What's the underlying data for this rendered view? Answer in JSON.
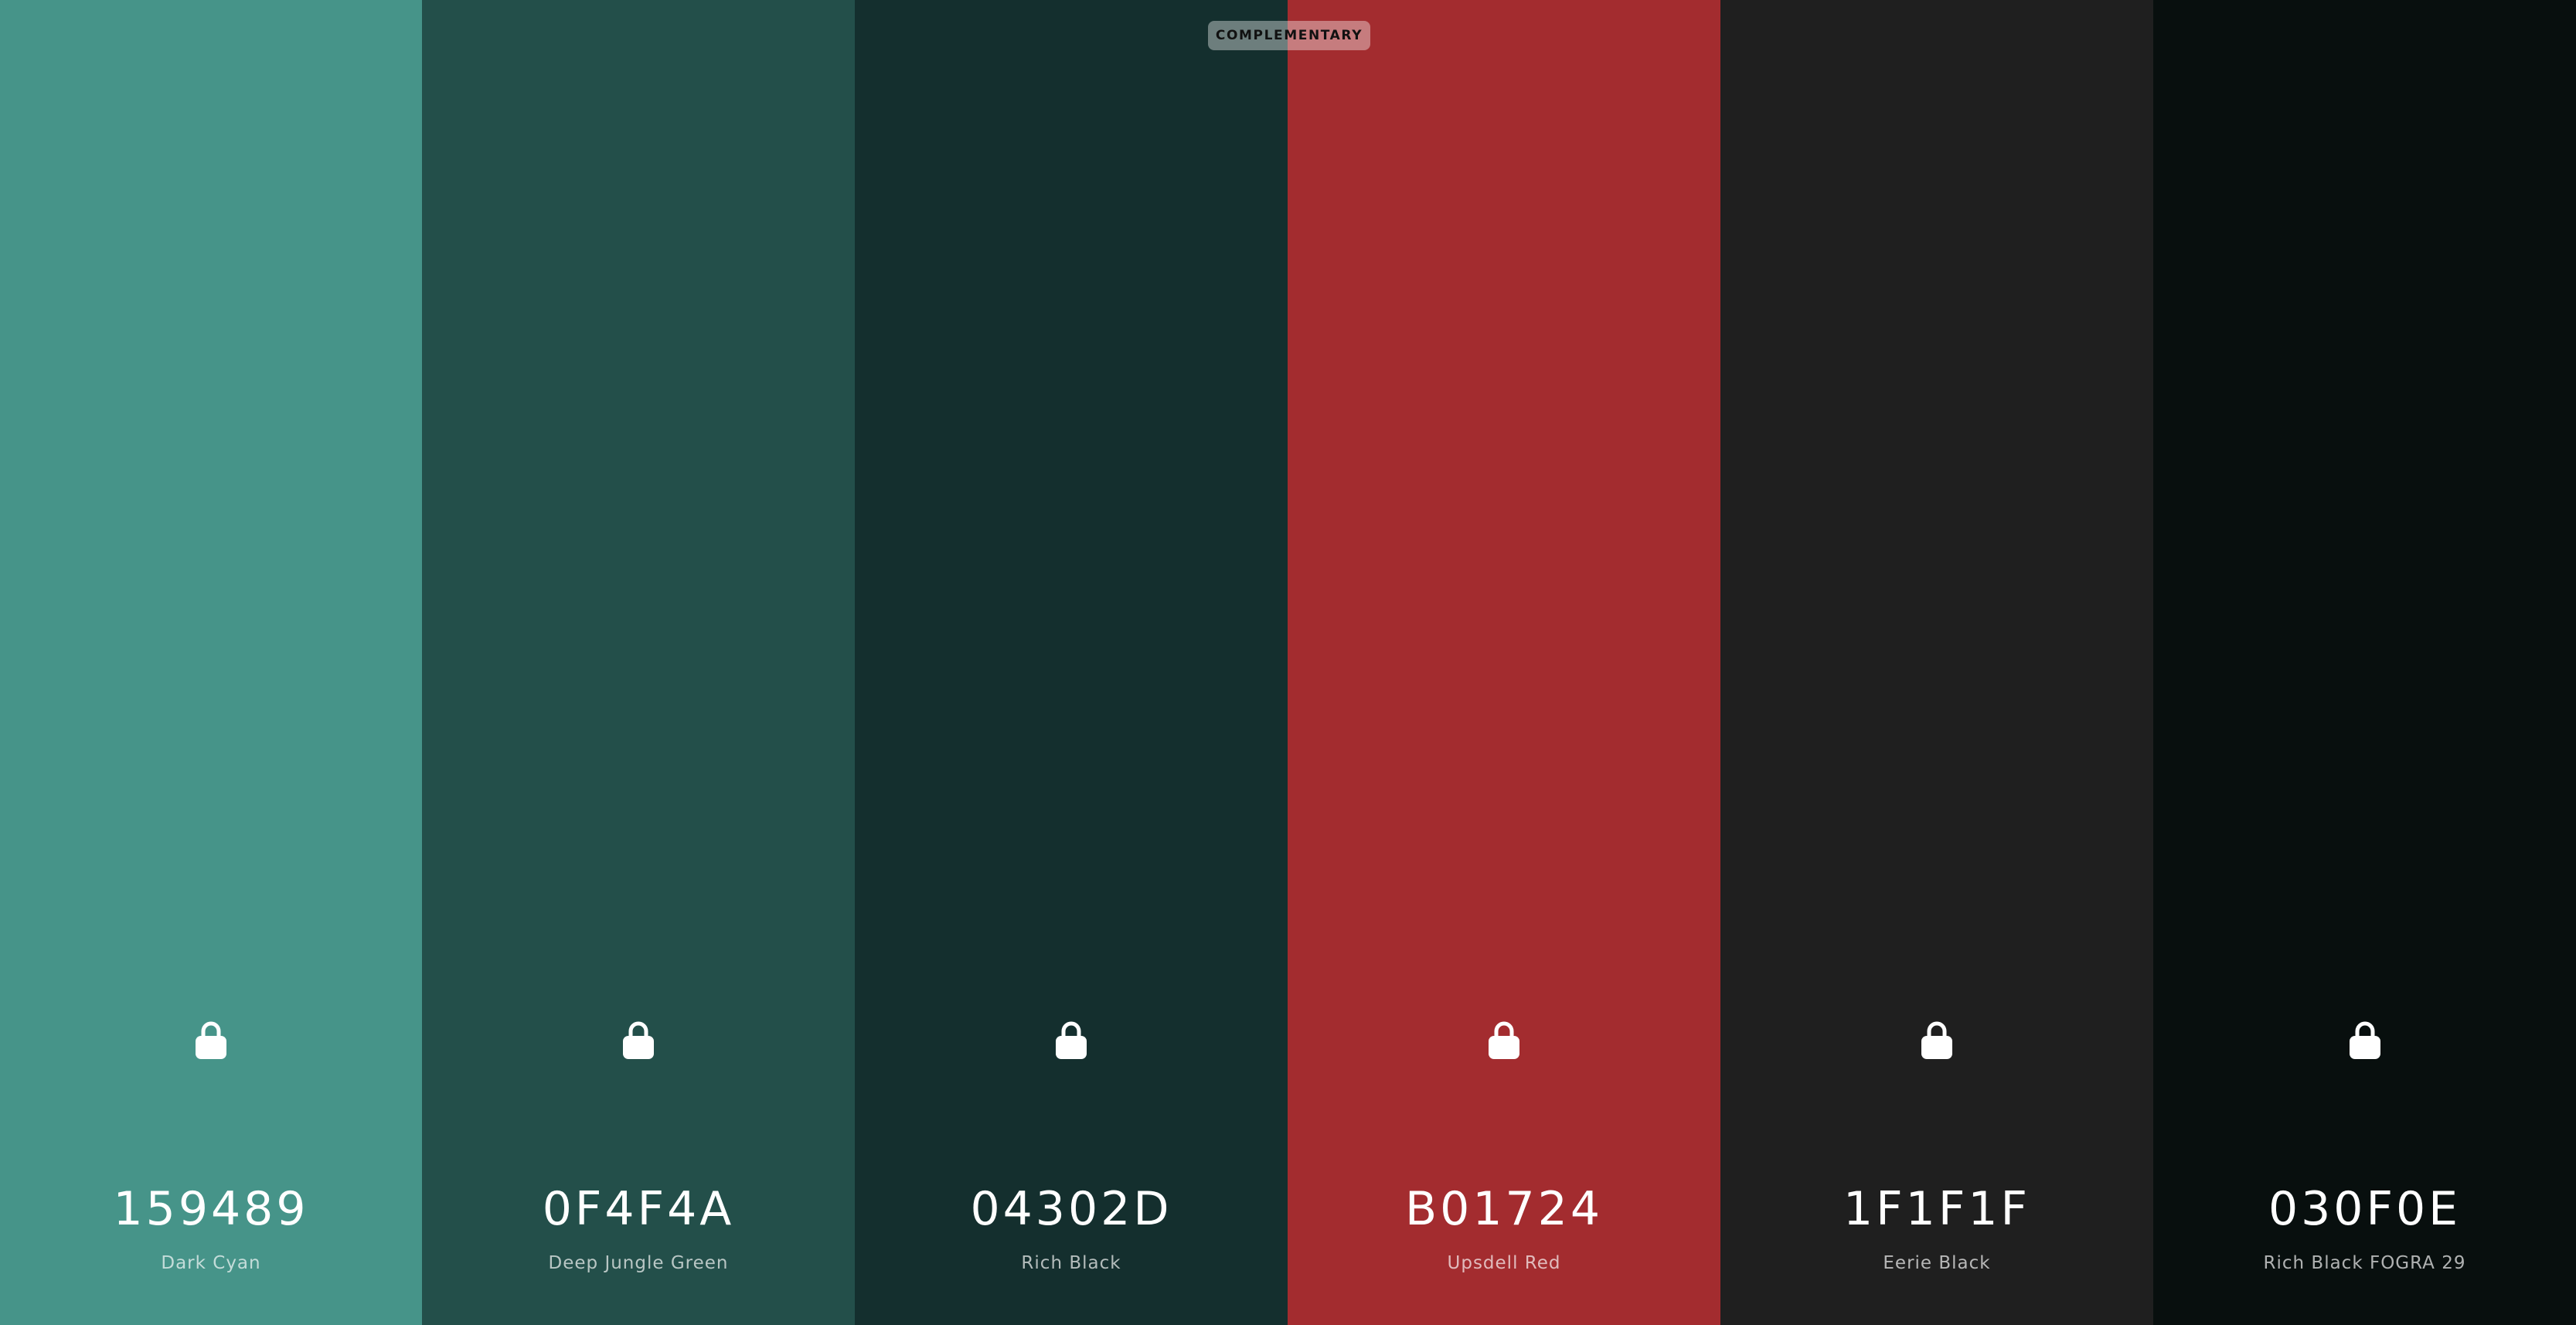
{
  "badge": {
    "label": "COMPLEMENTARY"
  },
  "swatches": [
    {
      "hex": "159489",
      "name": "Dark Cyan",
      "color": "#469489",
      "icon": "lock-icon"
    },
    {
      "hex": "0F4F4A",
      "name": "Deep Jungle Green",
      "color": "#234F4A",
      "icon": "lock-icon"
    },
    {
      "hex": "04302D",
      "name": "Rich Black",
      "color": "#142F2E",
      "icon": "lock-icon"
    },
    {
      "hex": "B01724",
      "name": "Upsdell Red",
      "color": "#A32C2F",
      "icon": "lock-icon"
    },
    {
      "hex": "1F1F1F",
      "name": "Eerie Black",
      "color": "#1F1F1F",
      "icon": "lock-icon"
    },
    {
      "hex": "030F0E",
      "name": "Rich Black FOGRA 29",
      "color": "#080F0E",
      "icon": "lock-icon"
    }
  ]
}
